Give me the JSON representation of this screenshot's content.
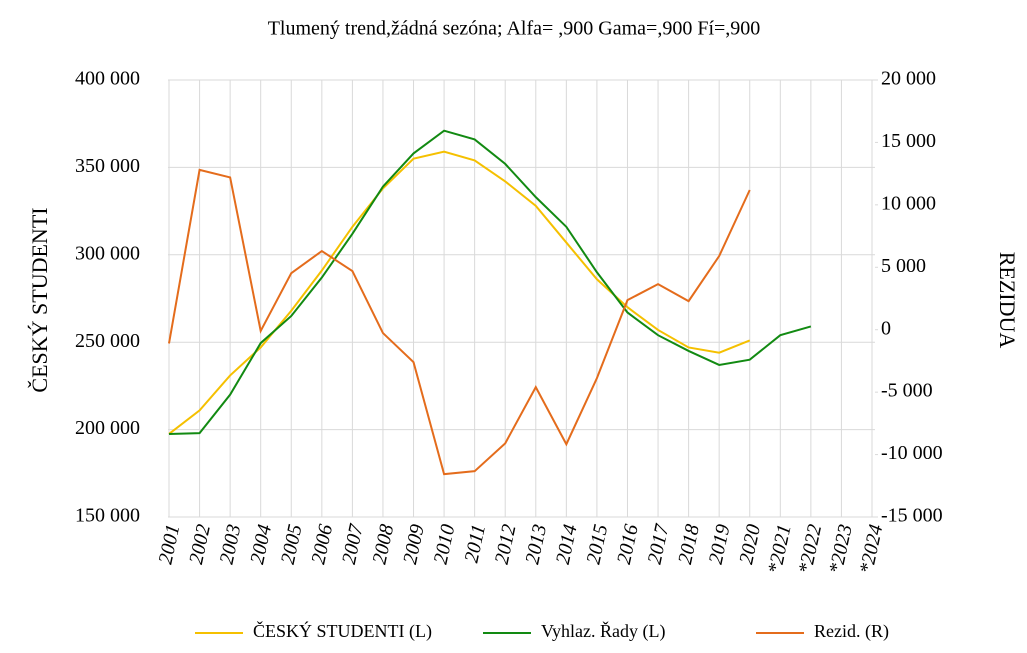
{
  "chart_data": {
    "type": "line",
    "title": "Tlumený trend,žádná sezóna; Alfa=  ,900 Gama=,900 Fí=,900",
    "y_label": "ČESKÝ STUDENTI",
    "y2_label": "REZIDUA",
    "categories": [
      "2001",
      "2002",
      "2003",
      "2004",
      "2005",
      "2006",
      "2007",
      "2008",
      "2009",
      "2010",
      "2011",
      "2012",
      "2013",
      "2014",
      "2015",
      "2016",
      "2017",
      "2018",
      "2019",
      "2020",
      "*2021",
      "*2022",
      "*2023",
      "*2024"
    ],
    "series": [
      {
        "name": "ČESKÝ STUDENTI (L)",
        "color": "#f5c000",
        "axis": "y",
        "values": [
          197500,
          211000,
          231000,
          247000,
          268000,
          291000,
          316000,
          338000,
          355000,
          359000,
          354000,
          342000,
          328000,
          307000,
          286000,
          270000,
          257000,
          247000,
          244000,
          251000,
          null,
          null,
          null,
          null
        ]
      },
      {
        "name": "Vyhlaz. Řady (L)",
        "color": "#128a12",
        "axis": "y",
        "values": [
          197500,
          198000,
          220000,
          249500,
          265000,
          287000,
          312000,
          339000,
          358000,
          371000,
          366000,
          352000,
          333000,
          316000,
          290000,
          267000,
          254000,
          245000,
          237000,
          240000,
          254000,
          259000,
          null,
          null
        ]
      },
      {
        "name": "Rezid. (R)",
        "color": "#e46c1c",
        "axis": "y2",
        "values": [
          -1100,
          12800,
          12200,
          -100,
          4530,
          6300,
          4700,
          -270,
          -2600,
          -11570,
          -11330,
          -9100,
          -4600,
          -9170,
          -3880,
          2370,
          3650,
          2290,
          5900,
          11190,
          null,
          null,
          null,
          null
        ]
      }
    ],
    "ylim": [
      150000,
      400000
    ],
    "yticks": [
      {
        "value": 150000,
        "label": "150 000"
      },
      {
        "value": 200000,
        "label": "200 000"
      },
      {
        "value": 250000,
        "label": "250 000"
      },
      {
        "value": 300000,
        "label": "300 000"
      },
      {
        "value": 350000,
        "label": "350 000"
      },
      {
        "value": 400000,
        "label": "400 000"
      }
    ],
    "y2lim": [
      -15000,
      20000
    ],
    "y2ticks": [
      {
        "value": -15000,
        "label": "-15 000"
      },
      {
        "value": -10000,
        "label": "-10 000"
      },
      {
        "value": -5000,
        "label": "-5 000"
      },
      0,
      {
        "value": 5000,
        "label": "5 000"
      },
      {
        "value": 10000,
        "label": "10 000"
      },
      {
        "value": 15000,
        "label": "15 000"
      },
      {
        "value": 20000,
        "label": "20 000"
      }
    ],
    "grid": true,
    "legend": "bottom"
  }
}
